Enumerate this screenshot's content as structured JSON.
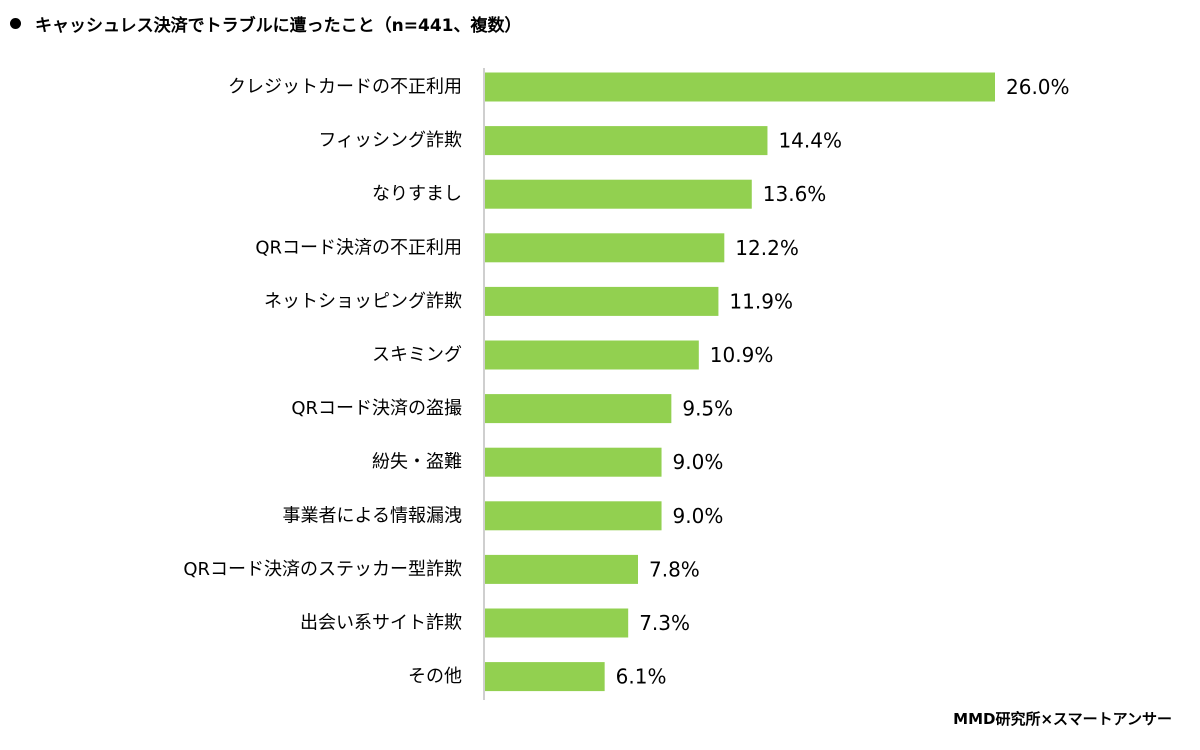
{
  "chart_data": {
    "type": "bar",
    "orientation": "horizontal",
    "title_bullet": "●",
    "title": "キャッシュレス決済でトラブルに遭ったこと（n=441、複数）",
    "categories": [
      "クレジットカードの不正利用",
      "フィッシング詐欺",
      "なりすまし",
      "QRコード決済の不正利用",
      "ネットショッピング詐欺",
      "スキミング",
      "QRコード決済の盗撮",
      "紛失・盗難",
      "事業者による情報漏洩",
      "QRコード決済のステッカー型詐欺",
      "出会い系サイト詐欺",
      "その他"
    ],
    "values": [
      26.0,
      14.4,
      13.6,
      12.2,
      11.9,
      10.9,
      9.5,
      9.0,
      9.0,
      7.8,
      7.3,
      6.1
    ],
    "value_labels": [
      "26.0%",
      "14.4%",
      "13.6%",
      "12.2%",
      "11.9%",
      "10.9%",
      "9.5%",
      "9.0%",
      "9.0%",
      "7.8%",
      "7.3%",
      "6.1%"
    ],
    "unit": "%",
    "xlim": [
      0,
      26.0
    ],
    "grid": false,
    "legend": "none",
    "bar_color": "#92d050",
    "axis_color": "#bfbfbf"
  },
  "source": "MMD研究所×スマートアンサー"
}
